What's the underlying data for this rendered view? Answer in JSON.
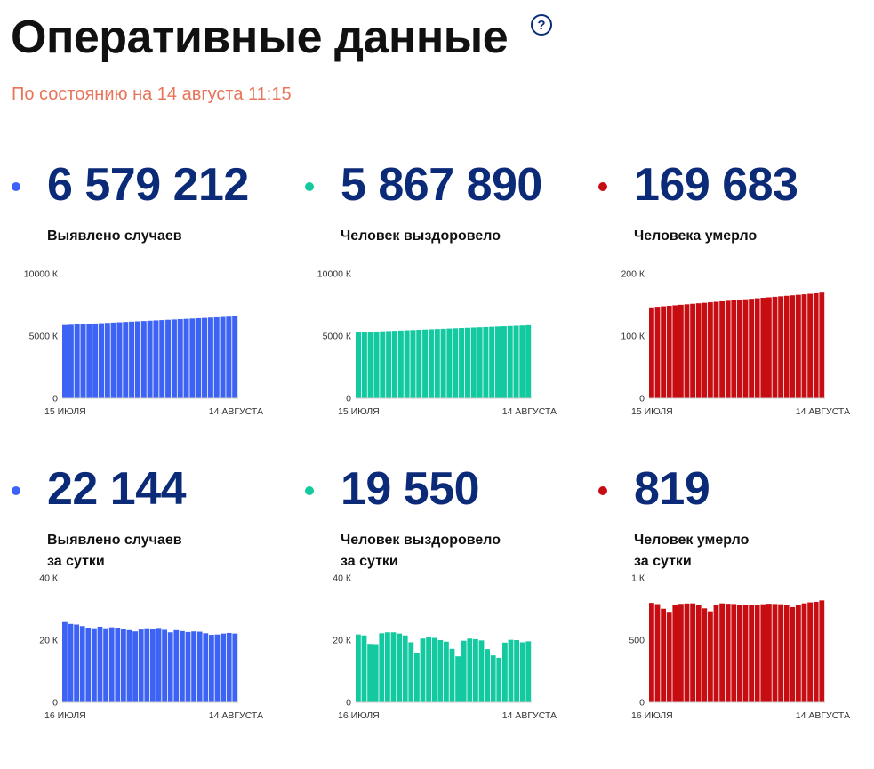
{
  "header": {
    "title": "Оперативные данные",
    "help_icon": "?",
    "subtitle": "По состоянию на 14 августа 11:15"
  },
  "colors": {
    "blue": "#3d63f5",
    "teal": "#12c9a0",
    "red": "#c80d12",
    "number": "#0b2a78"
  },
  "panels": [
    {
      "color": "#3d63f5",
      "number": "6 579 212",
      "label1": "Выявлено случаев",
      "label2": ""
    },
    {
      "color": "#12c9a0",
      "number": "5 867 890",
      "label1": "Человек выздоровело",
      "label2": ""
    },
    {
      "color": "#c80d12",
      "number": "169 683",
      "label1": "Человека умерло",
      "label2": ""
    },
    {
      "color": "#3d63f5",
      "number": "22 144",
      "label1": "Выявлено случаев",
      "label2": "за сутки"
    },
    {
      "color": "#12c9a0",
      "number": "19 550",
      "label1": "Человек выздоровело",
      "label2": "за сутки"
    },
    {
      "color": "#c80d12",
      "number": "819",
      "label1": "Человек умерло",
      "label2": "за сутки"
    }
  ],
  "chart_data": [
    {
      "type": "bar",
      "color": "#3d63f5",
      "ylim": [
        0,
        10000
      ],
      "yticks": [
        "0",
        "5000 К",
        "10000 К"
      ],
      "x_start": "15 ИЮЛЯ",
      "x_end": "14 АВГУСТА",
      "values": [
        5880,
        5905,
        5930,
        5955,
        5980,
        6005,
        6030,
        6055,
        6080,
        6105,
        6130,
        6155,
        6180,
        6205,
        6230,
        6255,
        6280,
        6305,
        6330,
        6355,
        6380,
        6405,
        6430,
        6455,
        6480,
        6505,
        6530,
        6555,
        6579
      ]
    },
    {
      "type": "bar",
      "color": "#12c9a0",
      "ylim": [
        0,
        10000
      ],
      "yticks": [
        "0",
        "5000 К",
        "10000 К"
      ],
      "x_start": "15 ИЮЛЯ",
      "x_end": "14 АВГУСТА",
      "values": [
        5300,
        5320,
        5340,
        5360,
        5380,
        5400,
        5420,
        5440,
        5460,
        5480,
        5500,
        5520,
        5540,
        5560,
        5580,
        5600,
        5620,
        5640,
        5660,
        5680,
        5700,
        5720,
        5740,
        5760,
        5780,
        5800,
        5820,
        5840,
        5868
      ]
    },
    {
      "type": "bar",
      "color": "#c80d12",
      "ylim": [
        0,
        200
      ],
      "yticks": [
        "0",
        "100 К",
        "200 К"
      ],
      "x_start": "15 ИЮЛЯ",
      "x_end": "14 АВГУСТА",
      "values": [
        146,
        147,
        147.8,
        148.6,
        149.4,
        150.2,
        151,
        151.8,
        152.6,
        153.4,
        154.2,
        155,
        155.8,
        156.6,
        157.4,
        158.2,
        159,
        159.8,
        160.6,
        161.4,
        162.2,
        163,
        163.8,
        164.6,
        165.4,
        166.2,
        167,
        167.8,
        168.6,
        169.7
      ]
    },
    {
      "type": "bar",
      "color": "#3d63f5",
      "ylim": [
        0,
        40
      ],
      "yticks": [
        "0",
        "20 К",
        "40 К"
      ],
      "x_start": "16 ИЮЛЯ",
      "x_end": "14 АВГУСТА",
      "values": [
        25.8,
        25.2,
        25,
        24.5,
        24,
        23.8,
        24.3,
        23.8,
        24.1,
        24,
        23.5,
        23.2,
        22.8,
        23.4,
        23.8,
        23.6,
        23.9,
        23.3,
        22.5,
        23.2,
        22.9,
        22.6,
        22.8,
        22.7,
        22.2,
        21.7,
        21.8,
        22.1,
        22.3,
        22.1
      ]
    },
    {
      "type": "bar",
      "color": "#12c9a0",
      "ylim": [
        0,
        40
      ],
      "yticks": [
        "0",
        "20 К",
        "40 К"
      ],
      "x_start": "16 ИЮЛЯ",
      "x_end": "14 АВГУСТА",
      "values": [
        21.8,
        21.5,
        18.8,
        18.7,
        22.2,
        22.5,
        22.5,
        22.1,
        21.5,
        19.3,
        16,
        20.5,
        20.9,
        20.7,
        20,
        19.5,
        17.2,
        14.8,
        19.8,
        20.5,
        20.3,
        19.9,
        17.1,
        15.1,
        14.3,
        19.2,
        20.1,
        20,
        19.3,
        19.6
      ]
    },
    {
      "type": "bar",
      "color": "#c80d12",
      "ylim": [
        0,
        1000
      ],
      "yticks": [
        "0",
        "500",
        "1 К"
      ],
      "x_start": "16 ИЮЛЯ",
      "x_end": "14 АВГУСТА",
      "values": [
        799,
        789,
        752,
        727,
        785,
        791,
        794,
        795,
        784,
        755,
        731,
        784,
        795,
        792,
        790,
        785,
        784,
        780,
        785,
        788,
        792,
        790,
        788,
        779,
        765,
        785,
        795,
        803,
        807,
        819
      ]
    }
  ]
}
